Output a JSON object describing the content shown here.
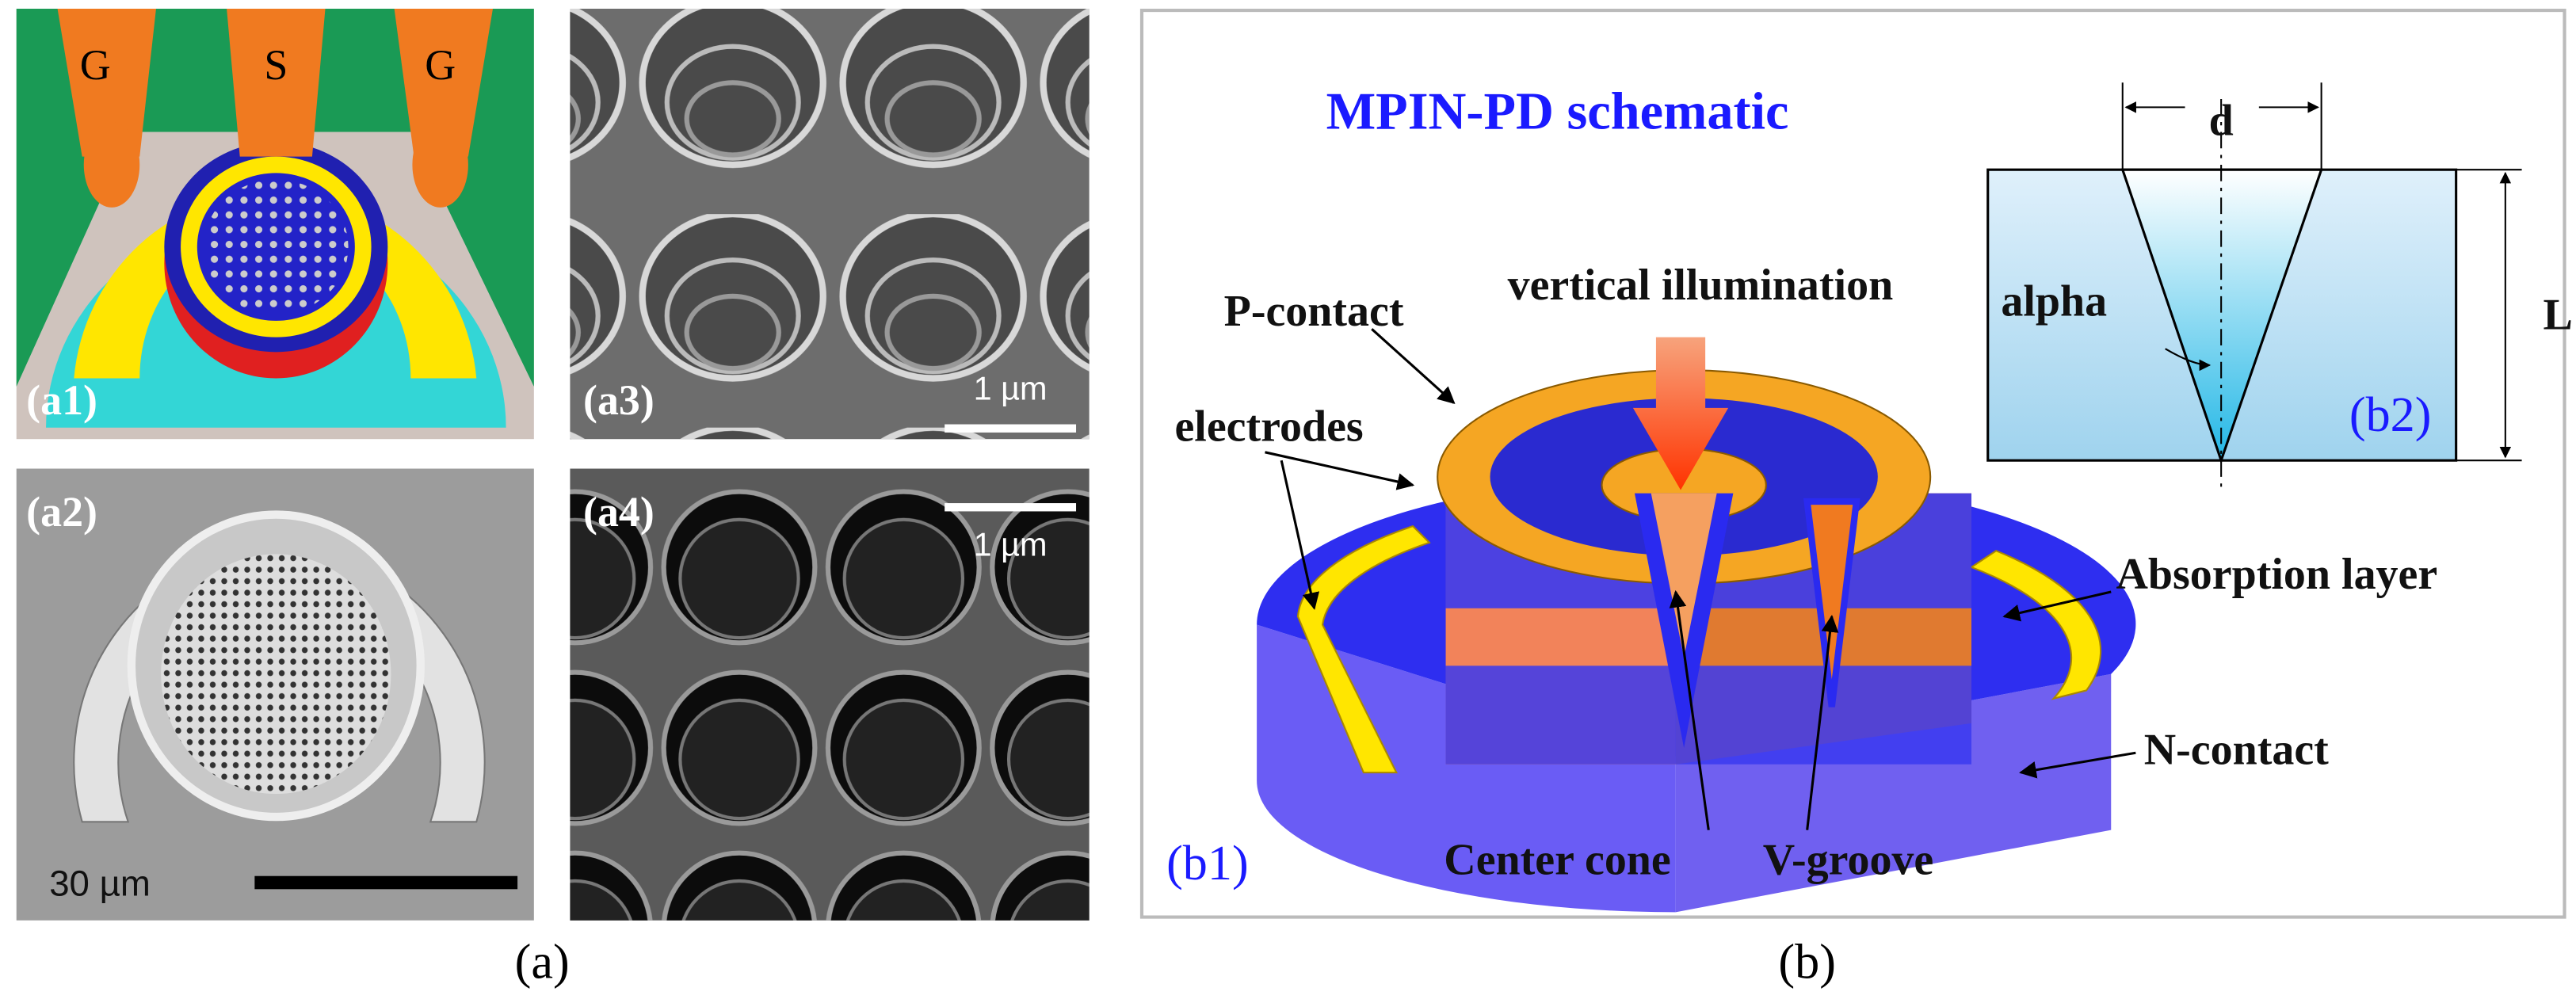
{
  "panels": {
    "a1": {
      "label": "(a1)",
      "electrodes": [
        "G",
        "S",
        "G"
      ]
    },
    "a2": {
      "label": "(a2)",
      "scale_bar": "30 µm"
    },
    "a3": {
      "label": "(a3)",
      "scale_bar": "1 µm"
    },
    "a4": {
      "label": "(a4)",
      "scale_bar": "1 µm"
    },
    "b1": {
      "title": "MPIN-PD schematic",
      "label": "(b1)",
      "annotations": [
        "vertical illumination",
        "P-contact",
        "electrodes",
        "Absorption layer",
        "N-contact",
        "Center cone",
        "V-groove"
      ]
    },
    "b2": {
      "label": "(b2)",
      "d": "d",
      "L": "L",
      "alpha": "alpha"
    }
  },
  "captions": [
    "(a)",
    "(b)"
  ]
}
